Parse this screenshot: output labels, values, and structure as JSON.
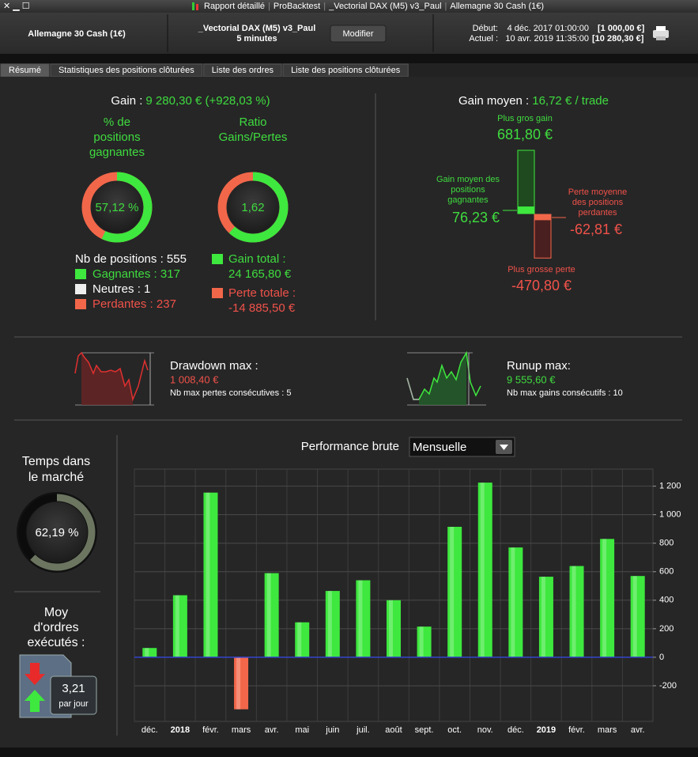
{
  "window_title": [
    "Rapport détaillé",
    "ProBacktest",
    "_Vectorial DAX (M5) v3_Paul",
    "Allemagne 30 Cash (1€)"
  ],
  "header": {
    "instrument": "Allemagne 30 Cash (1€)",
    "strategy": "_Vectorial DAX (M5) v3_Paul",
    "timeframe": "5 minutes",
    "button": "Modifier",
    "start_label": "Début:",
    "start_date": "4 déc. 2017 01:00:00",
    "start_capital": "[1 000,00 €]",
    "current_label": "Actuel :",
    "current_date": "10 avr. 2019 11:35:00",
    "current_capital": "[10 280,30 €]"
  },
  "tabs": [
    "Résumé",
    "Statistiques des positions clôturées",
    "Liste des ordres",
    "Liste des positions clôturées"
  ],
  "summary": {
    "gain_label": "Gain :",
    "gain_value": "9 280,30 € (+928,03 %)",
    "winning_pct_title": [
      "% de",
      "positions",
      "gagnantes"
    ],
    "winning_pct": "57,12 %",
    "ratio_title": [
      "Ratio",
      "Gains/Pertes"
    ],
    "ratio": "1,62",
    "positions_label": "Nb de positions : 555",
    "winners": "Gagnantes : 317",
    "neutral": "Neutres : 1",
    "losers": "Perdantes : 237",
    "total_gain_label": "Gain total :",
    "total_gain": "24 165,80 €",
    "total_loss_label": "Perte totale :",
    "total_loss": "-14 885,50 €"
  },
  "average": {
    "label": "Gain moyen :",
    "value": "16,72 € / trade",
    "max_gain_label": "Plus gros gain",
    "max_gain": "681,80 €",
    "avg_win_label": [
      "Gain moyen des",
      "positions",
      "gagnantes"
    ],
    "avg_win": "76,23 €",
    "avg_loss_label": [
      "Perte moyenne",
      "des positions",
      "perdantes"
    ],
    "avg_loss": "-62,81 €",
    "max_loss_label": "Plus grosse perte",
    "max_loss": "-470,80 €"
  },
  "drawdown": {
    "label": "Drawdown max :",
    "value": "1 008,40 €",
    "detail": "Nb max pertes consécutives : 5"
  },
  "runup": {
    "label": "Runup max:",
    "value": "9 555,60 €",
    "detail": "Nb max gains consécutifs : 10"
  },
  "market_time": {
    "label": [
      "Temps dans",
      "le marché"
    ],
    "value": "62,19 %"
  },
  "orders": {
    "label": [
      "Moy",
      "d'ordres",
      "exécutés :"
    ],
    "value": "3,21",
    "unit": "par jour"
  },
  "chart_data": {
    "type": "bar",
    "title": "Performance brute",
    "period": "Mensuelle",
    "categories": [
      "déc.",
      "2018",
      "févr.",
      "mars",
      "avr.",
      "mai",
      "juin",
      "juil.",
      "août",
      "sept.",
      "oct.",
      "nov.",
      "déc.",
      "2019",
      "févr.",
      "mars",
      "avr."
    ],
    "values": [
      65,
      435,
      1155,
      -365,
      590,
      245,
      465,
      540,
      400,
      215,
      915,
      1225,
      770,
      565,
      640,
      830,
      570
    ],
    "color": "#3ee83e",
    "negative_color": "#f2674a",
    "baseline_color": "#3344cc",
    "ylim": [
      -450,
      1320
    ],
    "yticks": [
      -200,
      0,
      200,
      400,
      600,
      800,
      {
        "value": 1000,
        "label": "1 000"
      },
      {
        "value": 1200,
        "label": "1 200"
      }
    ],
    "grid": true
  }
}
